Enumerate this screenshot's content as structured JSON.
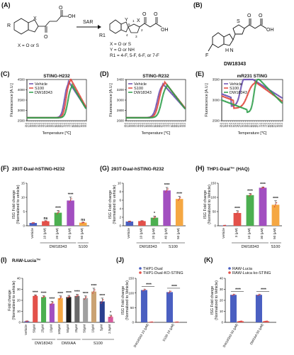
{
  "panels": {
    "A": {
      "label": "(A)",
      "arrow_label": "SAR",
      "left_caption": "X = O or S",
      "right_caption": [
        "X = O or S",
        "Y = O or NH",
        "R1 = 4-F, 5-F, 6-F, or 7-F"
      ],
      "atoms": {
        "X": "X",
        "R": "R",
        "OH": "OH",
        "O": "O",
        "Y": "Y",
        "R1": "R1",
        "N1": "1",
        "N2": "2",
        "N3": "3",
        "N4": "4",
        "N5": "5"
      }
    },
    "B": {
      "label": "(B)",
      "name": "DW18343",
      "atoms": {
        "S": "S",
        "OH": "OH",
        "O": "O",
        "NH": "H N",
        "F": "F"
      }
    }
  },
  "chart_data": [
    {
      "id": "C",
      "label": "(C)",
      "type": "line",
      "title": "STING-H232",
      "xlabel": "Temperature [℃]",
      "ylabel": "Fluorescence [A.U.]",
      "ylim": [
        2500,
        4500
      ],
      "yticks": [
        2500,
        3000,
        3500,
        4000,
        4500
      ],
      "xlim": [
        25,
        95
      ],
      "xtick_step": 2.5,
      "legend": [
        "Vehicle",
        "S100",
        "DW18343"
      ],
      "legend_position": "top-left",
      "series": [
        {
          "name": "Vehicle",
          "color": "#6a4fb0",
          "peak": 74,
          "max": 4400,
          "width": 7
        },
        {
          "name": "S100",
          "color": "#e0463c",
          "peak": 76,
          "max": 4560,
          "width": 7
        },
        {
          "name": "DW18343",
          "color": "#2e9e4a",
          "peak": 78,
          "max": 4250,
          "width": 7
        }
      ]
    },
    {
      "id": "D",
      "label": "(D)",
      "type": "line",
      "title": "STING-R232",
      "xlabel": "Temperature [℃]",
      "ylabel": "Fluorescence [A.U.]",
      "ylim": [
        2600,
        3400
      ],
      "yticks": [
        2600,
        2800,
        3000,
        3200,
        3400
      ],
      "xlim": [
        25,
        95
      ],
      "xtick_step": 2.5,
      "legend": [
        "Vehicle",
        "S100",
        "DW18343"
      ],
      "legend_position": "top-left",
      "series": [
        {
          "name": "Vehicle",
          "color": "#6a4fb0",
          "peak": 68,
          "max": 3320,
          "width": 9
        },
        {
          "name": "S100",
          "color": "#e0463c",
          "peak": 70,
          "max": 3360,
          "width": 9
        },
        {
          "name": "DW18343",
          "color": "#2e9e4a",
          "peak": 73,
          "max": 3300,
          "width": 9
        }
      ]
    },
    {
      "id": "E",
      "label": "(E)",
      "type": "line",
      "title": "mR231 STING",
      "xlabel": "Temperature [℃]",
      "ylabel": "Fluorescence [A.U.]",
      "ylim": [
        2500,
        3500
      ],
      "yticks": [
        2500,
        3000,
        3500
      ],
      "xlim": [
        25,
        95
      ],
      "xtick_step": 2.5,
      "legend": [
        "Vehicle",
        "S100",
        "DW18343"
      ],
      "legend_position": "top-left",
      "series": [
        {
          "name": "Vehicle",
          "color": "#6a4fb0",
          "peak": 52,
          "max": 3620,
          "width": 8,
          "base": 2850
        },
        {
          "name": "S100",
          "color": "#e0463c",
          "peak": 63,
          "max": 3450,
          "width": 12,
          "base": 2800
        },
        {
          "name": "DW18343",
          "color": "#2e9e4a",
          "peak": 66,
          "max": 3550,
          "width": 6,
          "base": 2700
        }
      ]
    },
    {
      "id": "F",
      "label": "(F)",
      "type": "bar",
      "title": "293T-Dual-hSTING-H232",
      "ylabel": "ISG Fold change\n(Normalized to vehicle)",
      "ylim": [
        0,
        15
      ],
      "yticks": [
        0,
        5,
        10,
        15
      ],
      "categories": [
        "Vehicle",
        "10 (μM)",
        "20 (μM)",
        "40 (μM)",
        "50 (μM)"
      ],
      "values": [
        1.0,
        1.6,
        4.6,
        8.9,
        1.1
      ],
      "errors": [
        0.1,
        0.2,
        0.8,
        1.2,
        0.2
      ],
      "colors": [
        "#4a5fc1",
        "#e3514a",
        "#4caf50",
        "#a24fc0",
        "#f5a742"
      ],
      "significance": [
        "",
        "ns",
        "****",
        "****",
        "ns"
      ],
      "groups": [
        {
          "label": "DW18343",
          "from": 1,
          "to": 3
        },
        {
          "label": "S100",
          "from": 4,
          "to": 4
        }
      ]
    },
    {
      "id": "G",
      "label": "(G)",
      "type": "bar",
      "title": "293T-Dual-hSTING-R232",
      "ylabel": "ISG Fold change\n(Normalized to vehicle)",
      "ylim": [
        0,
        10
      ],
      "yticks": [
        0,
        2,
        4,
        6,
        8,
        10
      ],
      "categories": [
        "Vehicle",
        "10 (μM)",
        "20 (μM)",
        "40 (μM)",
        "50 (μM)"
      ],
      "values": [
        1.0,
        1.1,
        1.9,
        8.3,
        6.3
      ],
      "errors": [
        0.1,
        0.1,
        0.4,
        0.7,
        0.6
      ],
      "colors": [
        "#4a5fc1",
        "#e3514a",
        "#4caf50",
        "#a24fc0",
        "#f5a742"
      ],
      "significance": [
        "",
        "",
        "*",
        "****",
        "****"
      ],
      "groups": [
        {
          "label": "DW18343",
          "from": 1,
          "to": 2
        },
        {
          "label": "S100",
          "from": 3,
          "to": 4
        }
      ]
    },
    {
      "id": "H",
      "label": "(H)",
      "type": "bar",
      "title": "THP1-Dual™ (HAQ)",
      "ylabel": "ISG Fold change\n(Normalized to Vehicle)",
      "ylim": [
        0,
        150
      ],
      "yticks": [
        0,
        50,
        100,
        150
      ],
      "categories": [
        "Vehicle",
        "3 (μM)",
        "10 (μM)",
        "30 (μM)",
        "50 (μM)"
      ],
      "values": [
        1,
        45,
        108,
        134,
        74
      ],
      "errors": [
        1,
        8,
        6,
        3,
        14
      ],
      "colors": [
        "#4a5fc1",
        "#e3514a",
        "#4caf50",
        "#a24fc0",
        "#f5a742"
      ],
      "significance": [
        "",
        "****",
        "****",
        "****",
        "****"
      ],
      "groups": [
        {
          "label": "DW18343",
          "from": 1,
          "to": 3
        },
        {
          "label": "S100",
          "from": 4,
          "to": 4
        }
      ]
    },
    {
      "id": "I",
      "label": "(I)",
      "type": "bar",
      "title": "RAW-Lucia™",
      "ylabel": "Fold change\n(Normalized to vehicle)",
      "ylim": [
        0,
        40
      ],
      "yticks": [
        0,
        10,
        20,
        30,
        40
      ],
      "categories": [
        "Vehicle",
        "50μM",
        "25μM",
        "10μM",
        "100μM",
        "50μM",
        "25μM",
        "50μM",
        "10μM",
        "5μM",
        "2.5μM"
      ],
      "values": [
        1,
        24,
        23,
        17,
        22,
        23,
        24,
        22,
        28,
        19,
        5
      ],
      "errors": [
        0.3,
        1,
        1.2,
        2,
        2,
        1.5,
        1.5,
        2,
        3,
        3,
        1.5
      ],
      "colors": [
        "#4a5fc1",
        "#e3514a",
        "#4caf50",
        "#a24fc0",
        "#f5a742",
        "#1b1b1b",
        "#6b6b6b",
        "#a0a0a0",
        "#caa273",
        "#2a3f8f",
        "#d65a9d"
      ],
      "significance": [
        "",
        "****",
        "****",
        "****",
        "****",
        "****",
        "****",
        "****",
        "****",
        "****",
        "*"
      ],
      "groups": [
        {
          "label": "DW18343",
          "from": 1,
          "to": 3
        },
        {
          "label": "DMXAA",
          "from": 4,
          "to": 6
        },
        {
          "label": "S100",
          "from": 7,
          "to": 10
        }
      ]
    },
    {
      "id": "J",
      "label": "(J)",
      "type": "bar",
      "title": "",
      "ylabel": "ISG Fold change\n(Normalized to Vehicle)",
      "ylim": [
        0,
        150
      ],
      "yticks": [
        0,
        50,
        100,
        150
      ],
      "categories": [
        "DW18343 10 (μM)",
        "S100 10 (μM)"
      ],
      "series": [
        {
          "name": "THP1-Dual",
          "color": "#4a5fc1",
          "values": [
            110,
            103
          ],
          "errors": [
            5,
            6
          ]
        },
        {
          "name": "THP1-Dual-KO-STING",
          "color": "#e3514a",
          "values": [
            1,
            1
          ],
          "errors": [
            0.5,
            0.5
          ]
        }
      ],
      "significance": [
        "****",
        "****"
      ],
      "legend_position": "top"
    },
    {
      "id": "K",
      "label": "(K)",
      "type": "bar",
      "title": "",
      "ylabel": "ISG Fold change\n(Normalized to Vehicle)",
      "ylim": [
        0,
        40
      ],
      "yticks": [
        0,
        10,
        20,
        30,
        40
      ],
      "categories": [
        "DW18343 50 (μM)",
        "DMXAA 50 (μM)"
      ],
      "series": [
        {
          "name": "RAW-Lucia",
          "color": "#4a5fc1",
          "values": [
            25,
            25
          ],
          "errors": [
            1,
            1
          ]
        },
        {
          "name": "RAW-Luica ko-STING",
          "color": "#e3514a",
          "values": [
            1,
            1
          ],
          "errors": [
            0.3,
            0.3
          ]
        }
      ],
      "significance": [
        "****",
        "****"
      ],
      "legend_position": "top"
    }
  ]
}
